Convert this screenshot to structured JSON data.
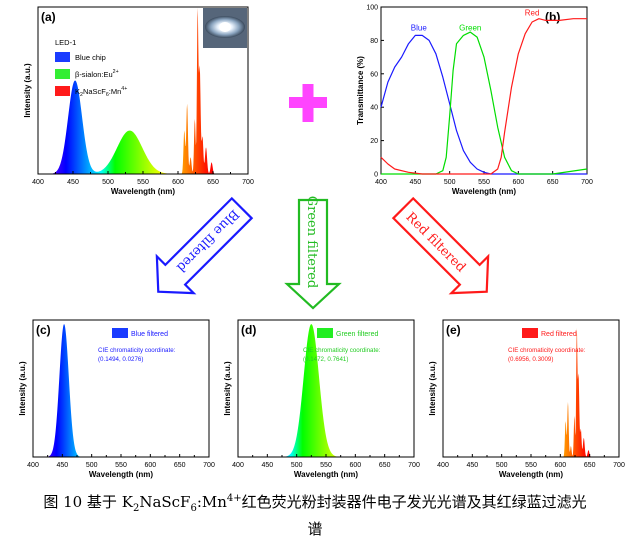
{
  "colors": {
    "blue": "#1a1aff",
    "green": "#00e000",
    "red": "#ff1a1a",
    "plus": "#ff44ff",
    "axis": "#000000"
  },
  "caption": {
    "line1": "图 10  基于 K2NaScF6:Mn4+红色荧光粉封装器件电子发光光谱及其红绿蓝过滤光",
    "line2": "谱"
  },
  "arrows": {
    "blue": {
      "label": "Blue filtered",
      "color": "#1a1aff"
    },
    "green": {
      "label": "Green filtered",
      "color": "#22bb22"
    },
    "red": {
      "label": "Red filtered",
      "color": "#ff1a1a"
    }
  },
  "chart_data": [
    {
      "id": "a",
      "type": "area",
      "panel_label": "(a)",
      "xlabel": "Wavelength (nm)",
      "ylabel": "Intensity (a.u.)",
      "xlim": [
        400,
        700
      ],
      "xticks": [
        400,
        450,
        500,
        550,
        600,
        650,
        700
      ],
      "legend_title": "LED-1",
      "legend": [
        {
          "label": "Blue chip",
          "color": "#1a3cff"
        },
        {
          "label": "β-sialon:Eu2+",
          "color": "#33ee33"
        },
        {
          "label": "K2NaScF6:Mn4+",
          "color": "#ff1a1a"
        }
      ],
      "peaks": [
        {
          "center": 453,
          "width": 10,
          "height": 0.56
        },
        {
          "center": 531,
          "width": 18,
          "height": 0.26
        },
        {
          "center": 609,
          "width": 1.2,
          "height": 0.26
        },
        {
          "center": 613,
          "width": 1.2,
          "height": 0.42
        },
        {
          "center": 618,
          "width": 1.3,
          "height": 0.1
        },
        {
          "center": 624,
          "width": 1.1,
          "height": 0.33
        },
        {
          "center": 628,
          "width": 1.0,
          "height": 0.95
        },
        {
          "center": 631,
          "width": 1.3,
          "height": 0.64
        },
        {
          "center": 635,
          "width": 1.2,
          "height": 0.22
        },
        {
          "center": 640,
          "width": 1.5,
          "height": 0.16
        },
        {
          "center": 648,
          "width": 1.5,
          "height": 0.07
        }
      ]
    },
    {
      "id": "b",
      "type": "line",
      "panel_label": "(b)",
      "xlabel": "Wavelength (nm)",
      "ylabel": "Transmittance (%)",
      "xlim": [
        400,
        700
      ],
      "ylim": [
        0,
        100
      ],
      "xticks": [
        400,
        450,
        500,
        550,
        600,
        650,
        700
      ],
      "yticks": [
        0,
        20,
        40,
        60,
        80,
        100
      ],
      "series": [
        {
          "name": "Blue",
          "color": "#1a1aff",
          "x": [
            400,
            410,
            420,
            430,
            440,
            450,
            460,
            470,
            480,
            490,
            500,
            510,
            520,
            530,
            540,
            550,
            560,
            580,
            600,
            650,
            700
          ],
          "y": [
            40,
            55,
            64,
            70,
            78,
            83,
            83,
            80,
            72,
            58,
            42,
            26,
            14,
            7,
            3,
            1,
            0,
            0,
            0,
            0,
            0
          ]
        },
        {
          "name": "Green",
          "color": "#00dd00",
          "x": [
            400,
            480,
            490,
            495,
            500,
            505,
            510,
            520,
            530,
            540,
            550,
            560,
            570,
            580,
            590,
            600,
            650,
            700
          ],
          "y": [
            0,
            0,
            2,
            10,
            35,
            62,
            78,
            83,
            85,
            82,
            70,
            50,
            28,
            10,
            2,
            0,
            0,
            3
          ]
        },
        {
          "name": "Red",
          "color": "#ff1a1a",
          "x": [
            400,
            410,
            420,
            440,
            460,
            480,
            500,
            560,
            570,
            575,
            580,
            590,
            600,
            610,
            620,
            630,
            640,
            660,
            680,
            700
          ],
          "y": [
            10,
            6,
            3,
            1,
            0,
            0,
            0,
            0,
            3,
            10,
            25,
            52,
            72,
            84,
            91,
            93,
            92,
            92,
            93,
            93
          ]
        }
      ]
    },
    {
      "id": "c",
      "type": "area",
      "panel_label": "(c)",
      "xlabel": "Wavelength (nm)",
      "ylabel": "Intensity (a.u.)",
      "xlim": [
        400,
        700
      ],
      "xticks": [
        400,
        450,
        500,
        550,
        600,
        650,
        700
      ],
      "legend": [
        {
          "label": "Blue filtered",
          "color": "#1a3cff"
        }
      ],
      "cie_title": "CIE chromaticity coordinate:",
      "cie_value": "(0.1494, 0.0276)",
      "text_color": "#1a1aff",
      "peaks": [
        {
          "center": 453,
          "width": 8,
          "height": 0.97
        }
      ]
    },
    {
      "id": "d",
      "type": "area",
      "panel_label": "(d)",
      "xlabel": "Wavelength (nm)",
      "ylabel": "Intensity (a.u.)",
      "xlim": [
        400,
        700
      ],
      "xticks": [
        400,
        450,
        500,
        550,
        600,
        650,
        700
      ],
      "legend": [
        {
          "label": "Green filtered",
          "color": "#22ee22"
        }
      ],
      "cie_title": "CIE chromaticity coordinate:",
      "cie_value": "(0.1472, 0.7641)",
      "text_color": "#22cc22",
      "peaks": [
        {
          "center": 525,
          "width": 13,
          "height": 0.97
        }
      ]
    },
    {
      "id": "e",
      "type": "area",
      "panel_label": "(e)",
      "xlabel": "Wavelength (nm)",
      "ylabel": "Intensity (a.u.)",
      "xlim": [
        400,
        700
      ],
      "xticks": [
        400,
        450,
        500,
        550,
        600,
        650,
        700
      ],
      "legend": [
        {
          "label": "Red filtered",
          "color": "#ff1a1a"
        }
      ],
      "cie_title": "CIE chromaticity coordinate:",
      "cie_value": "(0.6956, 0.3009)",
      "text_color": "#ff1a1a",
      "peaks": [
        {
          "center": 609,
          "width": 1.2,
          "height": 0.26
        },
        {
          "center": 613,
          "width": 1.2,
          "height": 0.4
        },
        {
          "center": 618,
          "width": 1.2,
          "height": 0.08
        },
        {
          "center": 624,
          "width": 1.1,
          "height": 0.3
        },
        {
          "center": 628,
          "width": 1.0,
          "height": 0.9
        },
        {
          "center": 631,
          "width": 1.3,
          "height": 0.6
        },
        {
          "center": 635,
          "width": 1.2,
          "height": 0.2
        },
        {
          "center": 640,
          "width": 1.5,
          "height": 0.14
        },
        {
          "center": 648,
          "width": 1.5,
          "height": 0.05
        }
      ]
    }
  ]
}
